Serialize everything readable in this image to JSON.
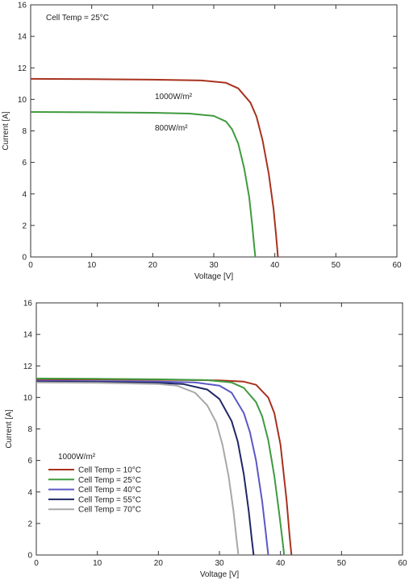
{
  "colors": {
    "red": "#a8321f",
    "green": "#3f9a3f",
    "blue": "#5b58c4",
    "navy": "#1f2766",
    "gray": "#a8a8a8",
    "axis": "#333333"
  },
  "chart_data": [
    {
      "type": "line",
      "title": "",
      "xlabel": "Voltage [V]",
      "ylabel": "Current [A]",
      "xlim": [
        0,
        60
      ],
      "ylim": [
        0,
        16
      ],
      "xticks": [
        0,
        10,
        20,
        30,
        40,
        50,
        60
      ],
      "yticks": [
        0,
        2,
        4,
        6,
        8,
        10,
        12,
        14,
        16
      ],
      "grid": false,
      "annotation": "Cell Temp = 25°C",
      "series": [
        {
          "name": "1000W/m²",
          "color": "#a8321f",
          "x": [
            0,
            10,
            20,
            28,
            32,
            34,
            36,
            37,
            38,
            39,
            39.8,
            40.2,
            40.4,
            40.5
          ],
          "y": [
            11.3,
            11.28,
            11.25,
            11.2,
            11.05,
            10.7,
            9.8,
            8.9,
            7.4,
            5.3,
            3.0,
            1.4,
            0.5,
            0
          ]
        },
        {
          "name": "800W/m²",
          "color": "#3f9a3f",
          "x": [
            0,
            10,
            20,
            26,
            30,
            32,
            33,
            34,
            35,
            35.8,
            36.3,
            36.6,
            36.8
          ],
          "y": [
            9.2,
            9.18,
            9.15,
            9.1,
            8.95,
            8.6,
            8.1,
            7.2,
            5.6,
            3.8,
            2.0,
            0.8,
            0
          ]
        }
      ],
      "labels": [
        "1000W/m²",
        "800W/m²"
      ]
    },
    {
      "type": "line",
      "title": "",
      "xlabel": "Voltage [V]",
      "ylabel": "Current [A]",
      "xlim": [
        0,
        60
      ],
      "ylim": [
        0,
        16
      ],
      "xticks": [
        0,
        10,
        20,
        30,
        40,
        50,
        60
      ],
      "yticks": [
        0,
        2,
        4,
        6,
        8,
        10,
        12,
        14,
        16
      ],
      "grid": false,
      "legend_title": "1000W/m²",
      "legend_position": "bottom-left",
      "series": [
        {
          "name": "Cell Temp = 10°C",
          "color": "#a8321f",
          "x": [
            0,
            10,
            20,
            30,
            34,
            36,
            38,
            39,
            40,
            41,
            41.5,
            41.8
          ],
          "y": [
            11.15,
            11.14,
            11.12,
            11.08,
            11.0,
            10.8,
            10.0,
            9.0,
            7.0,
            3.5,
            1.2,
            0
          ]
        },
        {
          "name": "Cell Temp = 25°C",
          "color": "#3f9a3f",
          "x": [
            0,
            10,
            20,
            28,
            32,
            34,
            36,
            37,
            38,
            39,
            39.8,
            40.4,
            40.6
          ],
          "y": [
            11.2,
            11.18,
            11.15,
            11.1,
            10.95,
            10.6,
            9.7,
            8.8,
            7.3,
            5.0,
            2.6,
            0.7,
            0
          ]
        },
        {
          "name": "Cell Temp = 40°C",
          "color": "#5b58c4",
          "x": [
            0,
            10,
            20,
            26,
            30,
            32,
            34,
            35,
            36,
            37,
            37.6,
            38.0
          ],
          "y": [
            11.05,
            11.03,
            11.0,
            10.95,
            10.75,
            10.3,
            9.0,
            7.8,
            6.0,
            3.4,
            1.4,
            0
          ]
        },
        {
          "name": "Cell Temp = 55°C",
          "color": "#1f2766",
          "x": [
            0,
            10,
            20,
            24,
            28,
            30,
            32,
            33,
            34,
            34.8,
            35.3,
            35.6
          ],
          "y": [
            11.0,
            10.98,
            10.92,
            10.85,
            10.5,
            9.9,
            8.5,
            7.2,
            5.1,
            2.8,
            1.0,
            0
          ]
        },
        {
          "name": "Cell Temp = 70°C",
          "color": "#a8a8a8",
          "x": [
            0,
            10,
            20,
            23,
            26,
            28,
            29.5,
            30.5,
            31.5,
            32.3,
            32.8,
            33.1
          ],
          "y": [
            10.95,
            10.93,
            10.85,
            10.75,
            10.3,
            9.5,
            8.4,
            7.0,
            5.0,
            2.8,
            1.0,
            0
          ]
        }
      ]
    }
  ]
}
